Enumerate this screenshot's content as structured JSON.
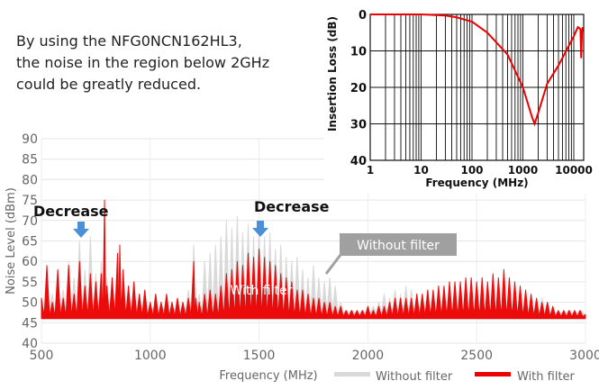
{
  "intro_text": [
    "By using the NFG0NCN162HL3,",
    "the noise in the region below 2GHz",
    "could be greatly reduced."
  ],
  "colors": {
    "without": "#d9d9d9",
    "with": "#ee0000",
    "arrow": "#4a90d9",
    "callout": "#a0a0a0"
  },
  "chart_data": [
    {
      "type": "area",
      "xlabel": "Frequency (MHz)",
      "ylabel": "Noise Level (dBm)",
      "xlim": [
        500,
        3000
      ],
      "ylim": [
        40,
        90
      ],
      "xticks": [
        500,
        1000,
        1500,
        2000,
        2500,
        3000
      ],
      "yticks": [
        40,
        45,
        50,
        55,
        60,
        65,
        70,
        75,
        80,
        85,
        90
      ],
      "grid": true,
      "legend": "bottom-right",
      "annotations": [
        "Decrease",
        "Decrease",
        "Without filter",
        "With filter"
      ],
      "series": [
        {
          "name": "Without filter",
          "points": [
            [
              500,
              50
            ],
            [
              525,
              55
            ],
            [
              550,
              52
            ],
            [
              575,
              57
            ],
            [
              600,
              53
            ],
            [
              625,
              60
            ],
            [
              650,
              56
            ],
            [
              675,
              65
            ],
            [
              700,
              58
            ],
            [
              725,
              66
            ],
            [
              750,
              57
            ],
            [
              775,
              60
            ],
            [
              800,
              56
            ],
            [
              825,
              55
            ],
            [
              850,
              60
            ],
            [
              875,
              55
            ],
            [
              900,
              52
            ],
            [
              925,
              54
            ],
            [
              950,
              52
            ],
            [
              975,
              53
            ],
            [
              1000,
              50
            ],
            [
              1025,
              52
            ],
            [
              1050,
              50
            ],
            [
              1075,
              52
            ],
            [
              1100,
              50
            ],
            [
              1125,
              51
            ],
            [
              1150,
              50
            ],
            [
              1175,
              53
            ],
            [
              1200,
              64
            ],
            [
              1225,
              52
            ],
            [
              1250,
              60
            ],
            [
              1275,
              62
            ],
            [
              1300,
              64
            ],
            [
              1325,
              66
            ],
            [
              1350,
              70
            ],
            [
              1375,
              68
            ],
            [
              1400,
              71
            ],
            [
              1425,
              67
            ],
            [
              1450,
              69
            ],
            [
              1475,
              66
            ],
            [
              1500,
              68
            ],
            [
              1525,
              66
            ],
            [
              1550,
              67
            ],
            [
              1575,
              63
            ],
            [
              1600,
              64
            ],
            [
              1625,
              61
            ],
            [
              1650,
              60
            ],
            [
              1675,
              61
            ],
            [
              1700,
              58
            ],
            [
              1725,
              56
            ],
            [
              1750,
              59
            ],
            [
              1775,
              56
            ],
            [
              1800,
              55
            ],
            [
              1825,
              56
            ],
            [
              1850,
              54
            ],
            [
              1875,
              50
            ],
            [
              1900,
              48
            ],
            [
              1925,
              48
            ],
            [
              1950,
              47
            ],
            [
              1975,
              48
            ],
            [
              2000,
              48
            ],
            [
              2025,
              49
            ],
            [
              2050,
              50
            ],
            [
              2075,
              52
            ],
            [
              2100,
              51
            ],
            [
              2125,
              53
            ],
            [
              2150,
              52
            ],
            [
              2175,
              54
            ],
            [
              2200,
              53
            ],
            [
              2225,
              52
            ],
            [
              2250,
              52
            ],
            [
              2275,
              51
            ],
            [
              2300,
              51
            ],
            [
              2325,
              52
            ],
            [
              2350,
              51
            ],
            [
              2375,
              51
            ],
            [
              2400,
              50
            ],
            [
              2425,
              51
            ],
            [
              2450,
              50
            ],
            [
              2475,
              50
            ],
            [
              2500,
              49
            ],
            [
              2525,
              50
            ],
            [
              2550,
              49
            ],
            [
              2575,
              50
            ],
            [
              2600,
              49
            ],
            [
              2625,
              49
            ],
            [
              2650,
              50
            ],
            [
              2675,
              49
            ],
            [
              2700,
              50
            ],
            [
              2725,
              49
            ],
            [
              2750,
              49
            ],
            [
              2775,
              50
            ],
            [
              2800,
              51
            ],
            [
              2825,
              50
            ],
            [
              2850,
              48
            ],
            [
              2875,
              47
            ],
            [
              2900,
              47
            ],
            [
              2925,
              48
            ],
            [
              2950,
              47
            ],
            [
              2975,
              48
            ],
            [
              3000,
              47
            ]
          ]
        },
        {
          "name": "With filter",
          "points": [
            [
              500,
              51
            ],
            [
              525,
              59
            ],
            [
              550,
              50
            ],
            [
              575,
              58
            ],
            [
              600,
              51
            ],
            [
              625,
              59
            ],
            [
              650,
              52
            ],
            [
              675,
              60
            ],
            [
              700,
              54
            ],
            [
              725,
              57
            ],
            [
              750,
              55
            ],
            [
              775,
              57
            ],
            [
              790,
              75
            ],
            [
              800,
              54
            ],
            [
              825,
              56
            ],
            [
              850,
              62
            ],
            [
              860,
              64
            ],
            [
              875,
              58
            ],
            [
              900,
              54
            ],
            [
              925,
              55
            ],
            [
              950,
              52
            ],
            [
              975,
              53
            ],
            [
              1000,
              50
            ],
            [
              1025,
              52
            ],
            [
              1050,
              50
            ],
            [
              1075,
              52
            ],
            [
              1100,
              50
            ],
            [
              1125,
              51
            ],
            [
              1150,
              50
            ],
            [
              1175,
              51
            ],
            [
              1200,
              60
            ],
            [
              1210,
              51
            ],
            [
              1225,
              50
            ],
            [
              1250,
              52
            ],
            [
              1275,
              53
            ],
            [
              1300,
              52
            ],
            [
              1325,
              54
            ],
            [
              1350,
              57
            ],
            [
              1375,
              58
            ],
            [
              1400,
              60
            ],
            [
              1425,
              59
            ],
            [
              1450,
              62
            ],
            [
              1475,
              61
            ],
            [
              1500,
              63
            ],
            [
              1525,
              61
            ],
            [
              1550,
              60
            ],
            [
              1575,
              59
            ],
            [
              1600,
              57
            ],
            [
              1625,
              56
            ],
            [
              1650,
              55
            ],
            [
              1675,
              53
            ],
            [
              1700,
              53
            ],
            [
              1725,
              52
            ],
            [
              1750,
              51
            ],
            [
              1775,
              51
            ],
            [
              1800,
              50
            ],
            [
              1825,
              50
            ],
            [
              1850,
              49
            ],
            [
              1875,
              49
            ],
            [
              1900,
              48
            ],
            [
              1925,
              48
            ],
            [
              1950,
              48
            ],
            [
              1975,
              48
            ],
            [
              2000,
              49
            ],
            [
              2025,
              48
            ],
            [
              2050,
              49
            ],
            [
              2075,
              49
            ],
            [
              2100,
              50
            ],
            [
              2125,
              51
            ],
            [
              2150,
              51
            ],
            [
              2175,
              51
            ],
            [
              2200,
              51
            ],
            [
              2225,
              52
            ],
            [
              2250,
              52
            ],
            [
              2275,
              53
            ],
            [
              2300,
              53
            ],
            [
              2325,
              54
            ],
            [
              2350,
              54
            ],
            [
              2375,
              55
            ],
            [
              2400,
              55
            ],
            [
              2425,
              55
            ],
            [
              2450,
              56
            ],
            [
              2475,
              56
            ],
            [
              2500,
              55
            ],
            [
              2525,
              56
            ],
            [
              2550,
              55
            ],
            [
              2575,
              57
            ],
            [
              2600,
              56
            ],
            [
              2625,
              58
            ],
            [
              2650,
              56
            ],
            [
              2675,
              55
            ],
            [
              2700,
              54
            ],
            [
              2725,
              53
            ],
            [
              2750,
              52
            ],
            [
              2775,
              51
            ],
            [
              2800,
              50
            ],
            [
              2825,
              50
            ],
            [
              2850,
              49
            ],
            [
              2875,
              48
            ],
            [
              2900,
              48
            ],
            [
              2925,
              48
            ],
            [
              2950,
              48
            ],
            [
              2975,
              48
            ],
            [
              3000,
              47
            ]
          ]
        }
      ]
    },
    {
      "type": "line",
      "xlabel": "Frequency (MHz)",
      "ylabel": "Insertion Loss (dB)",
      "xscale": "log",
      "xlim": [
        1,
        15000
      ],
      "ylim": [
        0,
        40
      ],
      "y_inverted": true,
      "xticks": [
        1,
        10,
        100,
        1000,
        10000
      ],
      "yticks": [
        0,
        10,
        20,
        30,
        40
      ],
      "grid": true,
      "series": [
        {
          "points": [
            [
              1,
              0
            ],
            [
              10,
              0
            ],
            [
              30,
              0.3
            ],
            [
              50,
              0.8
            ],
            [
              100,
              2
            ],
            [
              200,
              5
            ],
            [
              500,
              11
            ],
            [
              1000,
              20
            ],
            [
              1500,
              28
            ],
            [
              1700,
              30
            ],
            [
              2000,
              27
            ],
            [
              3000,
              19
            ],
            [
              5000,
              14
            ],
            [
              10000,
              6
            ],
            [
              12000,
              3.5
            ],
            [
              13500,
              4
            ],
            [
              14000,
              12
            ],
            [
              14500,
              5
            ],
            [
              15000,
              3.5
            ]
          ]
        }
      ]
    }
  ]
}
